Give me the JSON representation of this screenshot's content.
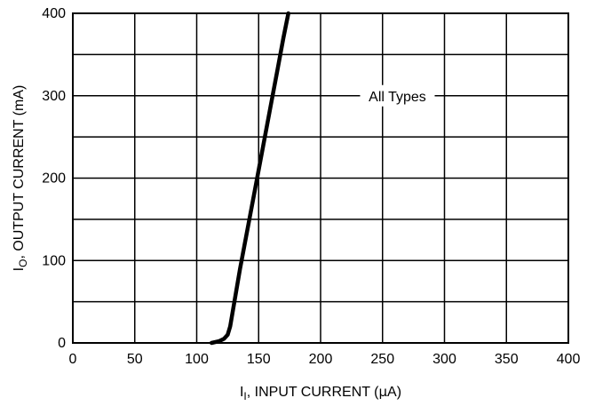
{
  "chart_data": {
    "type": "line",
    "title": "",
    "xlabel": {
      "main": "I",
      "sub": "I",
      "rest": ", INPUT CURRENT (",
      "mu": "μ",
      "unit": "A)"
    },
    "ylabel": {
      "main": "I",
      "sub": "O",
      "rest": ", OUTPUT CURRENT (mA)"
    },
    "xlim": [
      0,
      400
    ],
    "ylim": [
      0,
      400
    ],
    "xticks": [
      "0",
      "50",
      "100",
      "150",
      "200",
      "250",
      "300",
      "350",
      "400"
    ],
    "yticks": [
      "0",
      "100",
      "200",
      "300",
      "400"
    ],
    "grid": true,
    "annotation": "All Types",
    "series": [
      {
        "x": [
          112,
          118,
          122,
          125,
          127,
          135,
          145,
          150,
          160,
          165,
          170,
          174
        ],
        "y": [
          0,
          2,
          5,
          10,
          20,
          90,
          170,
          210,
          290,
          330,
          370,
          400
        ]
      }
    ]
  }
}
